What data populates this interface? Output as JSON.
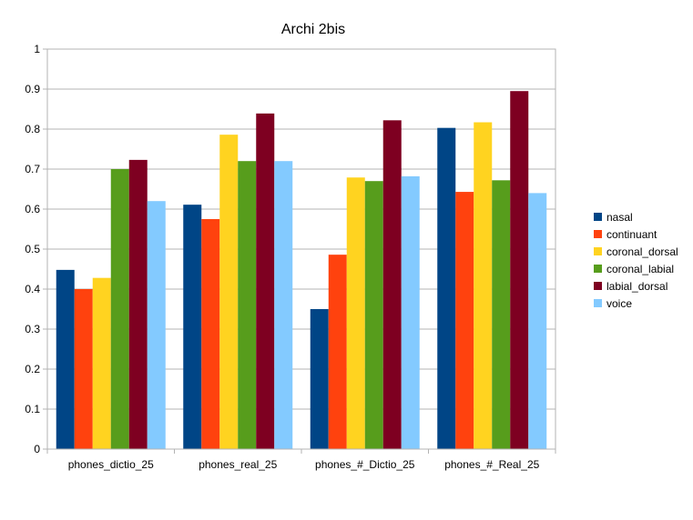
{
  "chart_data": {
    "type": "bar",
    "title": "Archi 2bis",
    "xlabel": "",
    "ylabel": "",
    "ylim": [
      0,
      1
    ],
    "yticks": [
      "0",
      "0.1",
      "0.2",
      "0.3",
      "0.4",
      "0.5",
      "0.6",
      "0.7",
      "0.8",
      "0.9",
      "1"
    ],
    "grid": true,
    "legend_position": "right",
    "categories": [
      "phones_dictio_25",
      "phones_real_25",
      "phones_#_Dictio_25",
      "phones_#_Real_25"
    ],
    "series": [
      {
        "name": "nasal",
        "color": "#004586",
        "values": [
          0.448,
          0.611,
          0.35,
          0.803
        ]
      },
      {
        "name": "continuant",
        "color": "#ff420e",
        "values": [
          0.4,
          0.575,
          0.486,
          0.643
        ]
      },
      {
        "name": "coronal_dorsal",
        "color": "#ffd320",
        "values": [
          0.428,
          0.786,
          0.679,
          0.817
        ]
      },
      {
        "name": "coronal_labial",
        "color": "#579d1c",
        "values": [
          0.7,
          0.72,
          0.67,
          0.672
        ]
      },
      {
        "name": "labial_dorsal",
        "color": "#7e0021",
        "values": [
          0.723,
          0.839,
          0.822,
          0.895
        ]
      },
      {
        "name": "voice",
        "color": "#83caff",
        "values": [
          0.62,
          0.72,
          0.682,
          0.64
        ]
      }
    ]
  }
}
